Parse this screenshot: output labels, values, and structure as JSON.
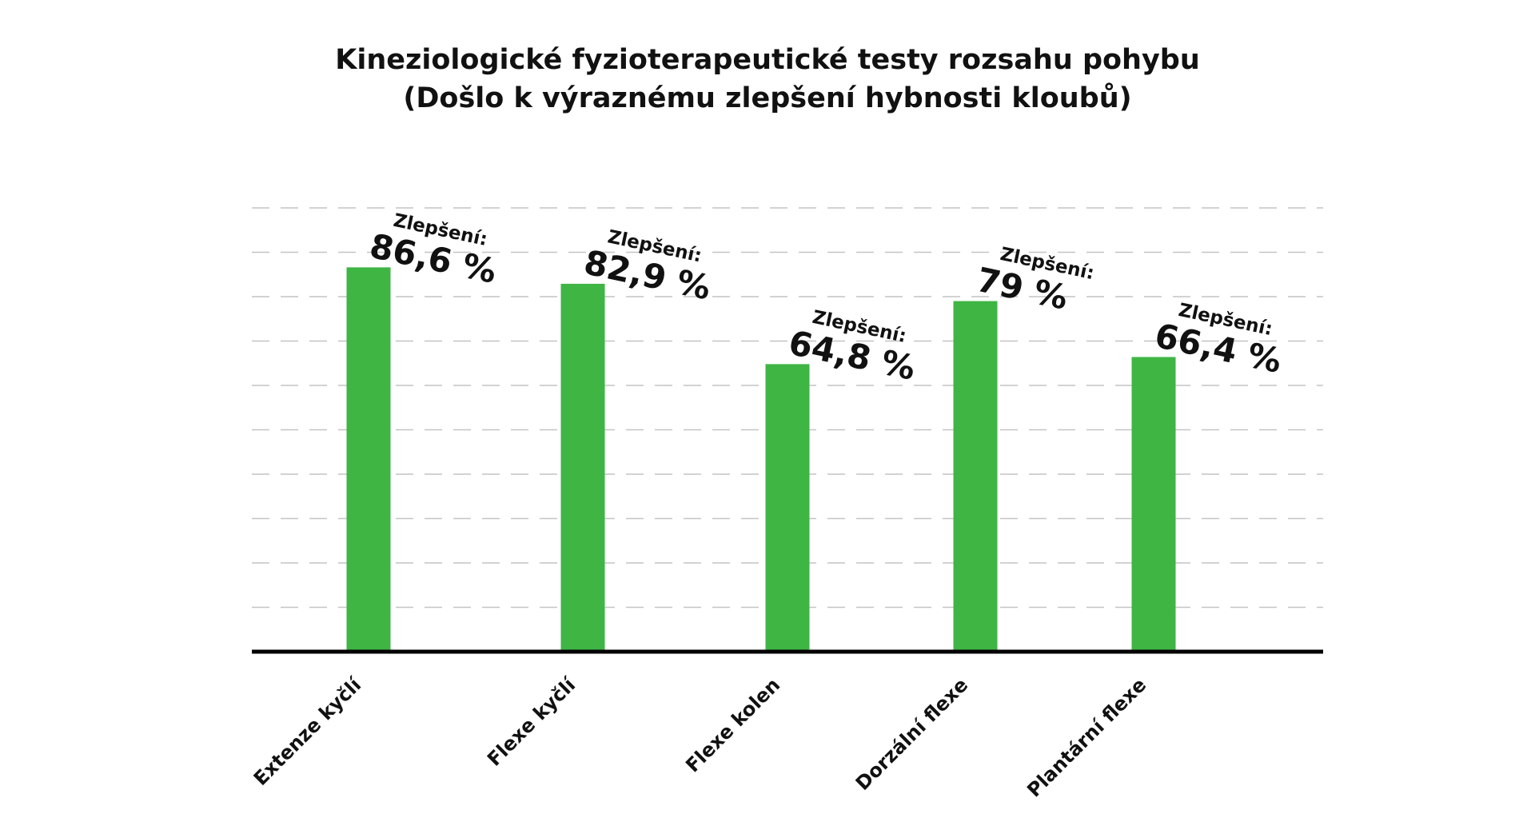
{
  "chart_data": {
    "type": "bar",
    "title": [
      "Kineziologické fyzioterapeutické testy rozsahu pohybu",
      "(Došlo k výraznému zlepšení hybnosti kloubů)"
    ],
    "categories": [
      "Extenze kyčlí",
      "Flexe kyčlí",
      "Flexe kolen",
      "Dorzální flexe",
      "Plantární flexe"
    ],
    "values": [
      86.6,
      82.9,
      64.8,
      79,
      66.4
    ],
    "data_label_caption": "Zlepšení:",
    "data_labels": [
      "86,6 %",
      "82,9 %",
      "64,8 %",
      "79 %",
      "66,4 %"
    ],
    "xlabel": "",
    "ylabel": "",
    "ylim": [
      0,
      100
    ],
    "grid": true,
    "legend": "none",
    "colors": {
      "bar": "#3fb544",
      "axis": "#000000",
      "grid": "#c4c4c4",
      "text": "#111111"
    }
  }
}
